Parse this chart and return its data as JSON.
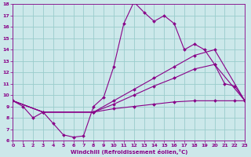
{
  "xlabel": "Windchill (Refroidissement éolien,°C)",
  "bg_color": "#cce8ea",
  "line_color": "#880088",
  "grid_color": "#99cccc",
  "xlim": [
    0,
    23
  ],
  "ylim": [
    6,
    18
  ],
  "xticks": [
    0,
    1,
    2,
    3,
    4,
    5,
    6,
    7,
    8,
    9,
    10,
    11,
    12,
    13,
    14,
    15,
    16,
    17,
    18,
    19,
    20,
    21,
    22,
    23
  ],
  "yticks": [
    6,
    7,
    8,
    9,
    10,
    11,
    12,
    13,
    14,
    15,
    16,
    17,
    18
  ],
  "series": [
    {
      "x": [
        0,
        1,
        2,
        3,
        4,
        5,
        6,
        7,
        8,
        9,
        10,
        11,
        12,
        13,
        14,
        15,
        16,
        17,
        18,
        19,
        20,
        21,
        22,
        23
      ],
      "y": [
        9.5,
        9.0,
        8.0,
        8.5,
        7.5,
        6.5,
        6.3,
        6.4,
        9.0,
        9.8,
        12.5,
        16.3,
        18.2,
        17.3,
        16.5,
        17.0,
        16.3,
        14.0,
        14.5,
        14.0,
        12.7,
        11.0,
        10.8,
        9.5
      ]
    },
    {
      "x": [
        0,
        3,
        8,
        10,
        12,
        14,
        16,
        18,
        20,
        23
      ],
      "y": [
        9.5,
        8.5,
        8.5,
        9.5,
        10.5,
        11.5,
        12.5,
        13.5,
        14.0,
        9.5
      ]
    },
    {
      "x": [
        0,
        3,
        8,
        10,
        12,
        14,
        16,
        18,
        20,
        23
      ],
      "y": [
        9.5,
        8.5,
        8.5,
        9.2,
        10.0,
        10.8,
        11.5,
        12.3,
        12.7,
        9.5
      ]
    },
    {
      "x": [
        0,
        3,
        8,
        10,
        12,
        14,
        16,
        18,
        20,
        22,
        23
      ],
      "y": [
        9.5,
        8.5,
        8.5,
        8.8,
        9.0,
        9.2,
        9.4,
        9.5,
        9.5,
        9.5,
        9.5
      ]
    }
  ]
}
